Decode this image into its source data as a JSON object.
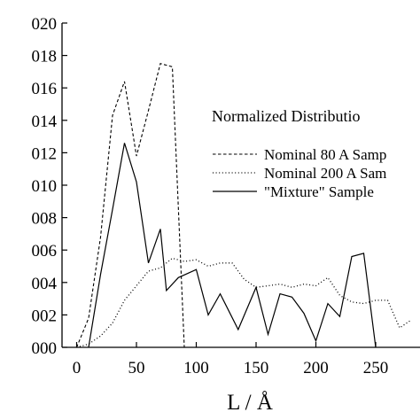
{
  "chart_data": {
    "type": "line",
    "title": "",
    "xlabel": "L / Å",
    "ylabel": "",
    "xlim": [
      -5,
      285
    ],
    "ylim": [
      0,
      0.02
    ],
    "grid": false,
    "x_ticks": [
      "0",
      "50",
      "100",
      "150",
      "200",
      "250"
    ],
    "x_tick_values": [
      0,
      50,
      100,
      150,
      200,
      250
    ],
    "y_ticks": [
      "020",
      "018",
      "016",
      "014",
      "012",
      "010",
      "008",
      "006",
      "004",
      "002",
      "000"
    ],
    "y_tick_values": [
      0.02,
      0.018,
      0.016,
      0.014,
      0.012,
      0.01,
      0.008,
      0.006,
      0.004,
      0.002,
      0.0
    ],
    "legend": {
      "position": "right",
      "title": "Normalized Distributio"
    },
    "series": [
      {
        "name": "Nominal 80 A Samp",
        "style": "dashed",
        "x": [
          0,
          10,
          20,
          30,
          40,
          50,
          60,
          70,
          80,
          90
        ],
        "y": [
          0.0,
          0.0018,
          0.0068,
          0.0143,
          0.0164,
          0.0118,
          0.0146,
          0.0175,
          0.0173,
          0.0
        ]
      },
      {
        "name": "Nominal 200 A Sam",
        "style": "dotted",
        "x": [
          0,
          10,
          20,
          30,
          40,
          50,
          60,
          70,
          80,
          90,
          100,
          110,
          120,
          130,
          140,
          150,
          160,
          170,
          180,
          190,
          200,
          210,
          220,
          230,
          240,
          250,
          260,
          270,
          280
        ],
        "y": [
          0.0,
          0.0002,
          0.0007,
          0.0015,
          0.0029,
          0.0038,
          0.0047,
          0.0049,
          0.0055,
          0.0053,
          0.0054,
          0.005,
          0.0052,
          0.0052,
          0.0042,
          0.0037,
          0.0038,
          0.0039,
          0.0037,
          0.0039,
          0.0038,
          0.0043,
          0.0032,
          0.0028,
          0.0027,
          0.0029,
          0.0029,
          0.0012,
          0.0017
        ]
      },
      {
        "name": "\"Mixture\" Sample",
        "style": "solid",
        "x": [
          10,
          20,
          30,
          40,
          50,
          60,
          70,
          75,
          85,
          100,
          110,
          120,
          135,
          150,
          160,
          170,
          180,
          190,
          200,
          210,
          220,
          230,
          240,
          250
        ],
        "y": [
          0.0,
          0.0045,
          0.0085,
          0.0126,
          0.0102,
          0.0052,
          0.0073,
          0.0035,
          0.0043,
          0.0048,
          0.002,
          0.0033,
          0.0011,
          0.0037,
          0.0008,
          0.0033,
          0.0031,
          0.0021,
          0.0004,
          0.0027,
          0.0019,
          0.0056,
          0.0058,
          0.0
        ]
      }
    ]
  }
}
